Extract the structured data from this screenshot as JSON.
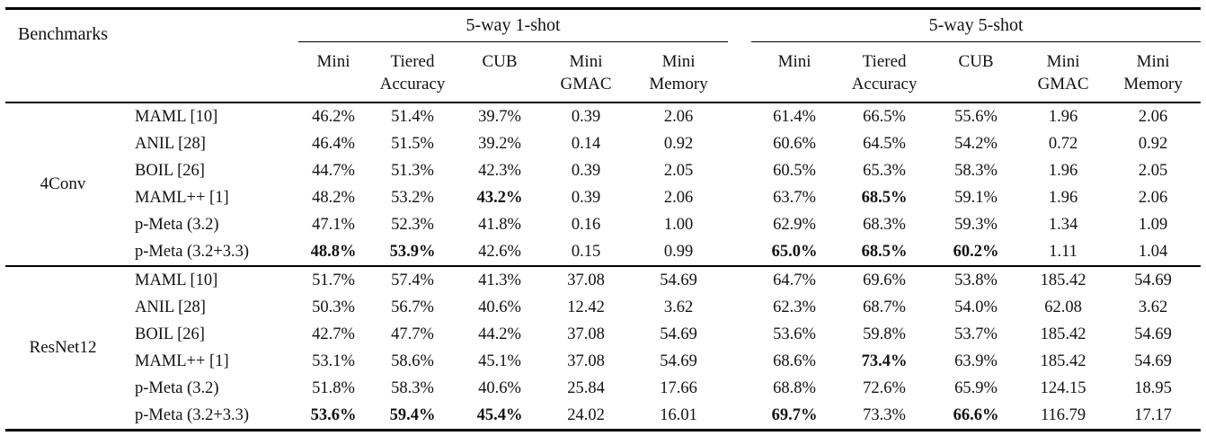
{
  "table": {
    "corner_label": "Benchmarks",
    "span_headers": {
      "one_shot": "5-way 1-shot",
      "five_shot": "5-way 5-shot"
    },
    "sub_headers": [
      {
        "line1": "Mini",
        "line2": ""
      },
      {
        "line1": "Tiered",
        "line2": "Accuracy"
      },
      {
        "line1": "CUB",
        "line2": ""
      },
      {
        "line1": "Mini",
        "line2": "GMAC"
      },
      {
        "line1": "Mini",
        "line2": "Memory"
      },
      {
        "line1": "Mini",
        "line2": ""
      },
      {
        "line1": "Tiered",
        "line2": "Accuracy"
      },
      {
        "line1": "CUB",
        "line2": ""
      },
      {
        "line1": "Mini",
        "line2": "GMAC"
      },
      {
        "line1": "Mini",
        "line2": "Memory"
      }
    ],
    "groups": [
      {
        "name": "4Conv",
        "rows": [
          {
            "method": "MAML [10]",
            "values": [
              "46.2%",
              "51.4%",
              "39.7%",
              "0.39",
              "2.06",
              "61.4%",
              "66.5%",
              "55.6%",
              "1.96",
              "2.06"
            ],
            "bold": []
          },
          {
            "method": "ANIL [28]",
            "values": [
              "46.4%",
              "51.5%",
              "39.2%",
              "0.14",
              "0.92",
              "60.6%",
              "64.5%",
              "54.2%",
              "0.72",
              "0.92"
            ],
            "bold": []
          },
          {
            "method": "BOIL [26]",
            "values": [
              "44.7%",
              "51.3%",
              "42.3%",
              "0.39",
              "2.05",
              "60.5%",
              "65.3%",
              "58.3%",
              "1.96",
              "2.05"
            ],
            "bold": []
          },
          {
            "method": "MAML++ [1]",
            "values": [
              "48.2%",
              "53.2%",
              "43.2%",
              "0.39",
              "2.06",
              "63.7%",
              "68.5%",
              "59.1%",
              "1.96",
              "2.06"
            ],
            "bold": [
              2,
              6
            ]
          },
          {
            "method": "p-Meta (3.2)",
            "values": [
              "47.1%",
              "52.3%",
              "41.8%",
              "0.16",
              "1.00",
              "62.9%",
              "68.3%",
              "59.3%",
              "1.34",
              "1.09"
            ],
            "bold": []
          },
          {
            "method": "p-Meta (3.2+3.3)",
            "values": [
              "48.8%",
              "53.9%",
              "42.6%",
              "0.15",
              "0.99",
              "65.0%",
              "68.5%",
              "60.2%",
              "1.11",
              "1.04"
            ],
            "bold": [
              0,
              1,
              5,
              6,
              7
            ]
          }
        ]
      },
      {
        "name": "ResNet12",
        "rows": [
          {
            "method": "MAML [10]",
            "values": [
              "51.7%",
              "57.4%",
              "41.3%",
              "37.08",
              "54.69",
              "64.7%",
              "69.6%",
              "53.8%",
              "185.42",
              "54.69"
            ],
            "bold": []
          },
          {
            "method": "ANIL [28]",
            "values": [
              "50.3%",
              "56.7%",
              "40.6%",
              "12.42",
              "3.62",
              "62.3%",
              "68.7%",
              "54.0%",
              "62.08",
              "3.62"
            ],
            "bold": []
          },
          {
            "method": "BOIL [26]",
            "values": [
              "42.7%",
              "47.7%",
              "44.2%",
              "37.08",
              "54.69",
              "53.6%",
              "59.8%",
              "53.7%",
              "185.42",
              "54.69"
            ],
            "bold": []
          },
          {
            "method": "MAML++ [1]",
            "values": [
              "53.1%",
              "58.6%",
              "45.1%",
              "37.08",
              "54.69",
              "68.6%",
              "73.4%",
              "63.9%",
              "185.42",
              "54.69"
            ],
            "bold": [
              6
            ]
          },
          {
            "method": "p-Meta (3.2)",
            "values": [
              "51.8%",
              "58.3%",
              "40.6%",
              "25.84",
              "17.66",
              "68.8%",
              "72.6%",
              "65.9%",
              "124.15",
              "18.95"
            ],
            "bold": []
          },
          {
            "method": "p-Meta (3.2+3.3)",
            "values": [
              "53.6%",
              "59.4%",
              "45.4%",
              "24.02",
              "16.01",
              "69.7%",
              "73.3%",
              "66.6%",
              "116.79",
              "17.17"
            ],
            "bold": [
              0,
              1,
              2,
              5,
              7
            ]
          }
        ]
      }
    ]
  }
}
